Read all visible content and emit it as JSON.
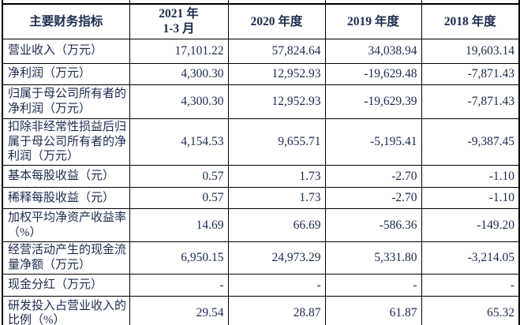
{
  "colors": {
    "text": "#1b2b4d",
    "border": "#000000",
    "background": "#ffffff"
  },
  "table": {
    "header": {
      "indicator_label": "主要财务指标",
      "period_columns": [
        {
          "lines": [
            "2021 年",
            "1-3 月"
          ]
        },
        {
          "lines": [
            "2020 年度"
          ]
        },
        {
          "lines": [
            "2019 年度"
          ]
        },
        {
          "lines": [
            "2018 年度"
          ]
        }
      ]
    },
    "rows": [
      {
        "label": "营业收入（万元）",
        "values": [
          "17,101.22",
          "57,824.64",
          "34,038.94",
          "19,603.14"
        ]
      },
      {
        "label": "净利润（万元）",
        "values": [
          "4,300.30",
          "12,952.93",
          "-19,629.48",
          "-7,871.43"
        ]
      },
      {
        "label": "归属于母公司所有者的净利润（万元）",
        "values": [
          "4,300.30",
          "12,952.93",
          "-19,629.39",
          "-7,871.43"
        ]
      },
      {
        "label": "扣除非经常性损益后归属于母公司所有者的净利润（万元）",
        "values": [
          "4,154.53",
          "9,655.71",
          "-5,195.41",
          "-9,387.45"
        ]
      },
      {
        "label": "基本每股收益（元）",
        "values": [
          "0.57",
          "1.73",
          "-2.70",
          "-1.10"
        ]
      },
      {
        "label": "稀释每股收益（元）",
        "values": [
          "0.57",
          "1.73",
          "-2.70",
          "-1.10"
        ]
      },
      {
        "label": "加权平均净资产收益率（%）",
        "values": [
          "14.69",
          "66.69",
          "-586.36",
          "-149.20"
        ]
      },
      {
        "label": "经营活动产生的现金流量净额（万元）",
        "values": [
          "6,950.15",
          "24,973.29",
          "5,331.80",
          "-3,214.05"
        ]
      },
      {
        "label": "现金分红（万元）",
        "values": [
          "-",
          "-",
          "-",
          "-"
        ]
      },
      {
        "label": "研发投入占营业收入的比例（%）",
        "values": [
          "29.54",
          "28.87",
          "61.87",
          "65.32"
        ]
      }
    ]
  }
}
